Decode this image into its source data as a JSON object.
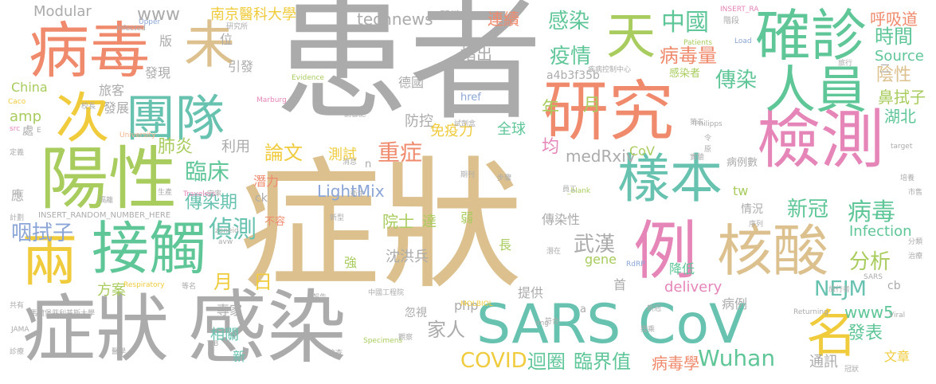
{
  "palette": {
    "grey": "#ababab",
    "tan": "#dcc18f",
    "coral": "#f08a6d",
    "green": "#5fc698",
    "lime": "#a8cc5d",
    "pink": "#e585b8",
    "blue": "#8aa5d6",
    "teal": "#68c2b0",
    "yellow": "#f0cb3c",
    "peach": "#f4b48c",
    "ltgrey": "#cbcbcb",
    "ltgreen": "#9ed8b2"
  },
  "words": {
    "huanzhe": "患者",
    "zhengzhuang1": "症狀",
    "zhengzhuang2": "症狀",
    "ganran": "感染",
    "sarscov": "SARS CoV",
    "bingdu": "病毒",
    "yangxing": "陽性",
    "yanjiu": "研究",
    "jiance": "檢測",
    "tuandui": "團隊",
    "jiechu": "接觸",
    "queshen": "確診",
    "renyuan": "人員",
    "yangben": "樣本",
    "hesuan": "核酸",
    "li": "例",
    "liang": "兩",
    "ci": "次",
    "wei": "未",
    "tian": "天",
    "ming": "名",
    "modular": "Modular",
    "www": "www",
    "nanjing": "南京醫科大學",
    "technews": "technews",
    "guanjian": "關鍵",
    "lianxu": "連續",
    "insert_ra": "INSERT_RA",
    "jieduan": "階段",
    "huxidao": "呼吸道",
    "ganran_sm": "感染",
    "zhongguo": "中國",
    "shijian": "時間",
    "source": "Source",
    "yinxing": "陰性",
    "bishizi": "鼻拭子",
    "hubei": "湖北",
    "yiqing": "疫情",
    "bingduliang": "病毒量",
    "chuanran": "傳染",
    "ganranzhe": "感染者",
    "a4b3f35b": "a4b3f35b",
    "zhichu": "指出",
    "deguo": "德國",
    "fangkong": "防控",
    "mianyili": "免疫力",
    "quanqiu": "全球",
    "zhongzheng": "重症",
    "lunwen": "論文",
    "ceshi": "測試",
    "linchuang": "臨床",
    "feiyan": "肺炎",
    "liyong": "利用",
    "qianli": "潛力",
    "chuanranqi": "傳染期",
    "zhence": "偵測",
    "yanshizi": "咽拭子",
    "amp": "amp",
    "china": "China",
    "lvke": "旅客",
    "fazhan": "發展",
    "faxian": "發現",
    "yinfa": "引發",
    "ban": "版",
    "wei_pos": "位",
    "lightmix": "LightMix",
    "medrxiv": "medRxiv",
    "cov": "CoV",
    "jun": "均",
    "nian": "年",
    "yue": "月",
    "yue2": "月",
    "ri": "日",
    "xinguan": "新冠",
    "bingdu_sm": "病毒",
    "fenxi": "分析",
    "infection": "Infection",
    "wuhan": "武漢",
    "nejm": "NEJM",
    "gene": "gene",
    "jiangdi": "降低",
    "delivery": "delivery",
    "tw": "tw",
    "qingkuang": "情況",
    "yuanshi": "院士",
    "da": "達",
    "shenhongbing": "沈洪兵",
    "qiang": "強",
    "ruo": "弱",
    "chang": "長",
    "chuanranxing": "傳染性",
    "jiaren": "家人",
    "fangan": "方案",
    "zhuanjia": "專家",
    "xiangguan": "相關",
    "xin": "新",
    "php": "php",
    "huishi": "忽視",
    "tigong": "提供",
    "shou": "首",
    "bingli": "病例",
    "www5": "www5",
    "fabiao": "發表",
    "cb": "cb",
    "covid": "COVID",
    "huiquan": "迴圈",
    "linjiezhi": "臨界值",
    "bingduxue": "病毒學",
    "wuhan_en": "Wuhan",
    "tongxun": "通訊",
    "wenzhang": "文章",
    "href": "href",
    "ying": "應",
    "insert_random": "INSERT_RANDOM_NUMBER_HERE",
    "burong": "不容",
    "ck": "ck",
    "n": "n",
    "evidence": "Evidence",
    "marburg": "Marburg",
    "university": "University",
    "travelers": "Travelers",
    "respiratory": "Respiratory",
    "upper": "Upper",
    "infected": "Infected",
    "patients": "Patients",
    "specimens": "Specimens",
    "load": "Load",
    "philipps": "Philipps",
    "target": "target",
    "rdrp": "RdRP",
    "returning": "Returning",
    "viral": "Viral",
    "jama": "JAMA",
    "molbiol": "MOLBIOL",
    "tib": "TIB",
    "zoneid": "zoneid",
    "avw": "avw",
    "blank": "_blank",
    "caco": "Caco",
    "src": "src",
    "img": "img",
    "sars_sm": "SARS",
    "e": "E",
    "a": "a",
    "er": "二",
    "ling": "令",
    "yuan": "原",
    "chu": "處",
    "xiaozhang": "校長",
    "yuangong": "員工",
    "zhongguo_gcy": "中國工程院",
    "xinxing": "新型",
    "lvxing": "旅行",
    "kongqi": "空率",
    "fazhan_sm": "發展",
    "xiaoxi": "消息",
    "jiance_sm": "檢查",
    "fuheji": "副書記",
    "zhengci": "政次",
    "shuo": "說",
    "shizhi": "試劑盒",
    "qianfu": "潛伏",
    "bingli_sm": "病例數",
    "xulie": "序列",
    "diwu": "第五",
    "dingyi": "定義",
    "shanqiu": "善丘",
    "jinli": "進入",
    "chiju": "吃緊",
    "shenzhen": "診斷",
    "lvxingzhe": "旅行者",
    "qianzai": "潛在",
    "qiye": "期刊",
    "maxing": "馬爾堡菲利普斯大學",
    "gongyou": "共有",
    "zhenliao": "診療",
    "yixue": "醫學",
    "jiancha": "檢查",
    "guancha": "觀察",
    "dazhan": "搭乘",
    "guanbing": "冠狀",
    "shenglv": "生產",
    "jiangji": "計劃",
    "shishi": "實施",
    "yanjiusuo": "研究所",
    "shichang": "市售",
    "weisheng": "衛生",
    "baogao": "報告",
    "pinghe": "評估",
    "zhongxin": "疾病控制中心",
    "yaoji": "藥劑",
    "fucheng": "符合",
    "xiaoli": "效率",
    "chengdu": "程度",
    "duoge": "多個",
    "buzhou": "步驟",
    "ganranlv": "感染率",
    "shangshu": "上述",
    "jiedian": "節點",
    "gaofang": "高風",
    "shiyan": "實驗",
    "shouxian": "首先",
    "chuchu": "出處",
    "laiyuan": "來源",
    "zhongdian": "重點",
    "fenfa": "分發",
    "yizhi": "一致",
    "weixian": "危險",
    "guanjianci": "關鍵詞",
    "shangwei": "尚未",
    "dengming": "等名",
    "xinguan_sm": "新冠",
    "jianyan": "檢驗",
    "suoyou": "所有",
    "zhili": "治理",
    "zhiliao": "治療",
    "peiyang": "培養",
    "fenlei": "分類",
    "geli": "隔離",
    "shuju": "數據",
    "ganran_sm2": "感染"
  }
}
